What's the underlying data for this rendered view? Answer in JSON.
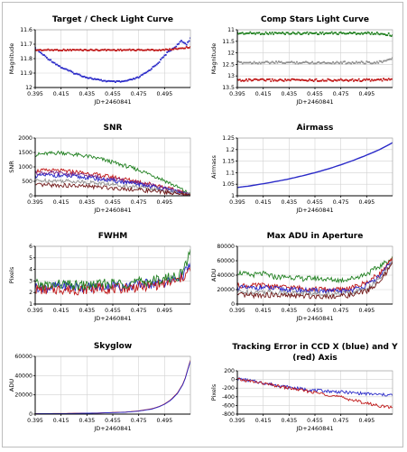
{
  "window": {
    "title": ""
  },
  "colors": {
    "blue": "#2a2ac8",
    "red": "#c01818",
    "green": "#208020",
    "gray": "#909090",
    "darkred": "#701818",
    "purple": "#7a2a8a",
    "grid": "#d2d2d2",
    "axis": "#000000"
  },
  "chart_data": [
    {
      "id": "target-check",
      "type": "scatter",
      "title": "Target / Check Light Curve",
      "xlabel": "JD+2460841",
      "ylabel": "Magnitude",
      "xlim": [
        0.395,
        0.515
      ],
      "ylim": [
        12.0,
        11.6
      ],
      "y_inverted": true,
      "xticks": [
        0.395,
        0.415,
        0.435,
        0.455,
        0.475,
        0.495
      ],
      "yticks": [
        11.6,
        11.7,
        11.8,
        11.9,
        12.0
      ],
      "ytick_labels": [
        "11.6",
        "11.7",
        "11.8",
        "11.9",
        "12"
      ],
      "series": [
        {
          "color": "#2a2ac8",
          "x": [
            0.395,
            0.405,
            0.415,
            0.425,
            0.435,
            0.445,
            0.455,
            0.462,
            0.468,
            0.475,
            0.482,
            0.49,
            0.497,
            0.503,
            0.508,
            0.512,
            0.515
          ],
          "y": [
            11.73,
            11.8,
            11.86,
            11.9,
            11.93,
            11.95,
            11.96,
            11.96,
            11.95,
            11.93,
            11.89,
            11.83,
            11.76,
            11.72,
            11.68,
            11.7,
            11.66
          ]
        },
        {
          "color": "#c01818",
          "x": [
            0.395,
            0.415,
            0.435,
            0.455,
            0.475,
            0.495,
            0.505,
            0.515
          ],
          "y": [
            11.74,
            11.74,
            11.74,
            11.74,
            11.74,
            11.74,
            11.73,
            11.72
          ]
        }
      ]
    },
    {
      "id": "comp-stars",
      "type": "scatter",
      "title": "Comp Stars Light Curve",
      "xlabel": "JD+2460841",
      "ylabel": "Magnitude",
      "xlim": [
        0.395,
        0.515
      ],
      "ylim": [
        13.5,
        11.0
      ],
      "y_inverted": true,
      "xticks": [
        0.395,
        0.415,
        0.435,
        0.455,
        0.475,
        0.495
      ],
      "yticks": [
        11.0,
        11.5,
        12.0,
        12.5,
        13.0,
        13.5
      ],
      "ytick_labels": [
        "11",
        "11.5",
        "12",
        "12.5",
        "13",
        "13.5"
      ],
      "series": [
        {
          "color": "#208020",
          "x": [
            0.395,
            0.435,
            0.475,
            0.495,
            0.505,
            0.512,
            0.515
          ],
          "y": [
            11.15,
            11.15,
            11.15,
            11.15,
            11.16,
            11.2,
            11.25
          ]
        },
        {
          "color": "#909090",
          "x": [
            0.395,
            0.435,
            0.475,
            0.495,
            0.505,
            0.512,
            0.515
          ],
          "y": [
            12.42,
            12.42,
            12.42,
            12.42,
            12.4,
            12.33,
            12.2
          ]
        },
        {
          "color": "#c01818",
          "x": [
            0.395,
            0.435,
            0.475,
            0.495,
            0.505,
            0.515
          ],
          "y": [
            13.18,
            13.18,
            13.18,
            13.18,
            13.17,
            13.15
          ]
        }
      ]
    },
    {
      "id": "snr",
      "type": "line",
      "title": "SNR",
      "xlabel": "JD+2460841",
      "ylabel": "SNR",
      "xlim": [
        0.395,
        0.515
      ],
      "ylim": [
        0,
        2000
      ],
      "xticks": [
        0.395,
        0.415,
        0.435,
        0.455,
        0.475,
        0.495
      ],
      "yticks": [
        0,
        500,
        1000,
        1500,
        2000
      ],
      "ytick_labels": [
        "0",
        "500",
        "1000",
        "1500",
        "2000"
      ],
      "series": [
        {
          "color": "#208020",
          "x": [
            0.395,
            0.405,
            0.415,
            0.425,
            0.435,
            0.445,
            0.455,
            0.465,
            0.475,
            0.485,
            0.495,
            0.505,
            0.515
          ],
          "y": [
            1420,
            1460,
            1500,
            1430,
            1370,
            1280,
            1160,
            1030,
            890,
            730,
            530,
            300,
            50
          ]
        },
        {
          "color": "#c01818",
          "x": [
            0.395,
            0.405,
            0.415,
            0.425,
            0.435,
            0.445,
            0.455,
            0.465,
            0.475,
            0.485,
            0.495,
            0.505,
            0.515
          ],
          "y": [
            860,
            880,
            860,
            830,
            780,
            710,
            650,
            570,
            490,
            400,
            300,
            160,
            20
          ]
        },
        {
          "color": "#7a2a8a",
          "x": [
            0.395,
            0.405,
            0.415,
            0.425,
            0.435,
            0.445,
            0.455,
            0.465,
            0.475,
            0.485,
            0.495,
            0.505,
            0.515
          ],
          "y": [
            780,
            790,
            770,
            740,
            700,
            640,
            580,
            510,
            440,
            360,
            270,
            150,
            15
          ]
        },
        {
          "color": "#2a2ac8",
          "x": [
            0.395,
            0.405,
            0.415,
            0.425,
            0.435,
            0.445,
            0.455,
            0.465,
            0.475,
            0.485,
            0.495,
            0.505,
            0.515
          ],
          "y": [
            690,
            710,
            690,
            660,
            630,
            570,
            520,
            460,
            390,
            320,
            240,
            130,
            10
          ]
        },
        {
          "color": "#909090",
          "x": [
            0.395,
            0.405,
            0.415,
            0.425,
            0.435,
            0.445,
            0.455,
            0.465,
            0.475,
            0.485,
            0.495,
            0.505,
            0.515
          ],
          "y": [
            520,
            530,
            520,
            500,
            470,
            430,
            390,
            345,
            295,
            240,
            180,
            100,
            10
          ]
        },
        {
          "color": "#701818",
          "x": [
            0.395,
            0.405,
            0.415,
            0.425,
            0.435,
            0.445,
            0.455,
            0.465,
            0.475,
            0.485,
            0.495,
            0.505,
            0.515
          ],
          "y": [
            360,
            370,
            360,
            345,
            325,
            300,
            270,
            240,
            205,
            165,
            125,
            70,
            5
          ]
        }
      ]
    },
    {
      "id": "airmass",
      "type": "line",
      "title": "Airmass",
      "xlabel": "JD+2460841",
      "ylabel": "Airmass",
      "xlim": [
        0.395,
        0.515
      ],
      "ylim": [
        1.0,
        1.25
      ],
      "xticks": [
        0.395,
        0.415,
        0.435,
        0.455,
        0.475,
        0.495
      ],
      "yticks": [
        1.0,
        1.05,
        1.1,
        1.15,
        1.2,
        1.25
      ],
      "ytick_labels": [
        "1",
        "1.05",
        "1.1",
        "1.15",
        "1.2",
        "1.25"
      ],
      "series": [
        {
          "color": "#2a2ac8",
          "x": [
            0.395,
            0.405,
            0.415,
            0.425,
            0.435,
            0.445,
            0.455,
            0.465,
            0.475,
            0.485,
            0.495,
            0.505,
            0.515
          ],
          "y": [
            1.036,
            1.043,
            1.052,
            1.062,
            1.073,
            1.086,
            1.1,
            1.116,
            1.134,
            1.154,
            1.176,
            1.2,
            1.23
          ]
        }
      ]
    },
    {
      "id": "fwhm",
      "type": "line",
      "title": "FWHM",
      "xlabel": "JD+2460841",
      "ylabel": "Pixels",
      "xlim": [
        0.395,
        0.515
      ],
      "ylim": [
        1,
        6
      ],
      "xticks": [
        0.395,
        0.415,
        0.435,
        0.455,
        0.475,
        0.495
      ],
      "yticks": [
        1,
        2,
        3,
        4,
        5,
        6
      ],
      "ytick_labels": [
        "1",
        "2",
        "3",
        "4",
        "5",
        "6"
      ],
      "series": [
        {
          "color": "#2a2ac8",
          "x": [
            0.395,
            0.405,
            0.415,
            0.425,
            0.435,
            0.445,
            0.455,
            0.465,
            0.475,
            0.485,
            0.495,
            0.505,
            0.51,
            0.515
          ],
          "y": [
            2.5,
            2.4,
            2.6,
            2.5,
            2.4,
            2.5,
            2.6,
            2.5,
            2.7,
            2.8,
            2.9,
            3.2,
            3.6,
            4.4
          ]
        },
        {
          "color": "#c01818",
          "x": [
            0.395,
            0.405,
            0.415,
            0.425,
            0.435,
            0.445,
            0.455,
            0.465,
            0.475,
            0.485,
            0.495,
            0.505,
            0.51,
            0.515
          ],
          "y": [
            2.3,
            2.2,
            2.3,
            2.2,
            2.3,
            2.4,
            2.3,
            2.4,
            2.5,
            2.6,
            2.8,
            3.0,
            3.4,
            4.0
          ]
        },
        {
          "color": "#208020",
          "x": [
            0.395,
            0.405,
            0.415,
            0.425,
            0.435,
            0.445,
            0.455,
            0.465,
            0.475,
            0.485,
            0.495,
            0.505,
            0.51,
            0.515
          ],
          "y": [
            2.7,
            2.6,
            2.7,
            2.6,
            2.6,
            2.7,
            2.8,
            2.8,
            2.9,
            3.0,
            3.2,
            3.4,
            3.9,
            5.6
          ]
        }
      ]
    },
    {
      "id": "max-adu",
      "type": "line",
      "title": "Max ADU in Aperture",
      "xlabel": "JD+2460841",
      "ylabel": "ADU",
      "xlim": [
        0.395,
        0.515
      ],
      "ylim": [
        0,
        80000
      ],
      "xticks": [
        0.395,
        0.415,
        0.435,
        0.455,
        0.475,
        0.495
      ],
      "yticks": [
        0,
        20000,
        40000,
        60000,
        80000
      ],
      "ytick_labels": [
        "0",
        "20000",
        "40000",
        "60000",
        "80000"
      ],
      "series": [
        {
          "color": "#208020",
          "x": [
            0.395,
            0.405,
            0.415,
            0.425,
            0.435,
            0.445,
            0.455,
            0.465,
            0.475,
            0.485,
            0.495,
            0.505,
            0.515
          ],
          "y": [
            44000,
            40000,
            42000,
            37000,
            38000,
            35000,
            36000,
            34000,
            33000,
            36000,
            42000,
            52000,
            64000
          ]
        },
        {
          "color": "#c01818",
          "x": [
            0.395,
            0.405,
            0.415,
            0.425,
            0.435,
            0.445,
            0.455,
            0.465,
            0.475,
            0.485,
            0.495,
            0.505,
            0.515
          ],
          "y": [
            26000,
            25000,
            26000,
            24000,
            23000,
            22000,
            21000,
            20000,
            20000,
            23000,
            30000,
            42000,
            62000
          ]
        },
        {
          "color": "#2a2ac8",
          "x": [
            0.395,
            0.405,
            0.415,
            0.425,
            0.435,
            0.445,
            0.455,
            0.465,
            0.475,
            0.485,
            0.495,
            0.505,
            0.515
          ],
          "y": [
            23000,
            22000,
            23000,
            21000,
            20000,
            19000,
            18500,
            18000,
            17500,
            20000,
            26000,
            38000,
            60000
          ]
        },
        {
          "color": "#909090",
          "x": [
            0.395,
            0.405,
            0.415,
            0.425,
            0.435,
            0.445,
            0.455,
            0.465,
            0.475,
            0.485,
            0.495,
            0.505,
            0.515
          ],
          "y": [
            17000,
            16500,
            17000,
            16000,
            15500,
            15000,
            14500,
            14000,
            14000,
            16500,
            22000,
            34000,
            58000
          ]
        },
        {
          "color": "#701818",
          "x": [
            0.395,
            0.405,
            0.415,
            0.425,
            0.435,
            0.445,
            0.455,
            0.465,
            0.475,
            0.485,
            0.495,
            0.505,
            0.515
          ],
          "y": [
            12000,
            12000,
            12500,
            12000,
            11500,
            11000,
            11000,
            11000,
            11000,
            13000,
            18000,
            30000,
            56000
          ]
        }
      ]
    },
    {
      "id": "skyglow",
      "type": "line",
      "title": "Skyglow",
      "xlabel": "JD+2460841",
      "ylabel": "ADU",
      "xlim": [
        0.395,
        0.515
      ],
      "ylim": [
        0,
        60000
      ],
      "xticks": [
        0.395,
        0.415,
        0.435,
        0.455,
        0.475,
        0.495
      ],
      "yticks": [
        0,
        20000,
        40000,
        60000
      ],
      "ytick_labels": [
        "0",
        "20000",
        "40000",
        "60000"
      ],
      "series": [
        {
          "color": "#c01818",
          "x": [
            0.395,
            0.42,
            0.445,
            0.465,
            0.475,
            0.485,
            0.49,
            0.495,
            0.5,
            0.505,
            0.51,
            0.515
          ],
          "y": [
            500,
            700,
            1200,
            2200,
            3300,
            5500,
            7500,
            10500,
            15000,
            22000,
            33000,
            56000
          ]
        },
        {
          "color": "#2a2ac8",
          "x": [
            0.395,
            0.42,
            0.445,
            0.465,
            0.475,
            0.485,
            0.49,
            0.495,
            0.5,
            0.505,
            0.51,
            0.515
          ],
          "y": [
            400,
            600,
            1100,
            2000,
            3100,
            5200,
            7200,
            10200,
            14600,
            21500,
            32500,
            55000
          ]
        }
      ]
    },
    {
      "id": "tracking-error",
      "type": "line",
      "title": "Tracking Error in CCD X (blue) and Y (red) Axis",
      "title_lines": [
        "Tracking Error in CCD X (blue) and Y",
        "(red) Axis"
      ],
      "xlabel": "JD+2460841",
      "ylabel": "Pixels",
      "xlim": [
        0.395,
        0.515
      ],
      "ylim": [
        -800,
        200
      ],
      "xticks": [
        0.395,
        0.415,
        0.435,
        0.455,
        0.475,
        0.495
      ],
      "yticks": [
        -800,
        -600,
        -400,
        -200,
        0,
        200
      ],
      "ytick_labels": [
        "-800",
        "-600",
        "-400",
        "-200",
        "0",
        "200"
      ],
      "series": [
        {
          "color": "#2a2ac8",
          "x": [
            0.395,
            0.405,
            0.415,
            0.425,
            0.435,
            0.445,
            0.455,
            0.465,
            0.475,
            0.485,
            0.495,
            0.505,
            0.515
          ],
          "y": [
            20,
            -30,
            -80,
            -130,
            -180,
            -220,
            -250,
            -270,
            -290,
            -310,
            -330,
            -350,
            -360
          ]
        },
        {
          "color": "#c01818",
          "x": [
            0.395,
            0.405,
            0.415,
            0.425,
            0.435,
            0.445,
            0.455,
            0.465,
            0.475,
            0.485,
            0.495,
            0.505,
            0.515
          ],
          "y": [
            0,
            -40,
            -90,
            -150,
            -200,
            -250,
            -300,
            -350,
            -410,
            -480,
            -550,
            -610,
            -650
          ]
        }
      ]
    }
  ]
}
